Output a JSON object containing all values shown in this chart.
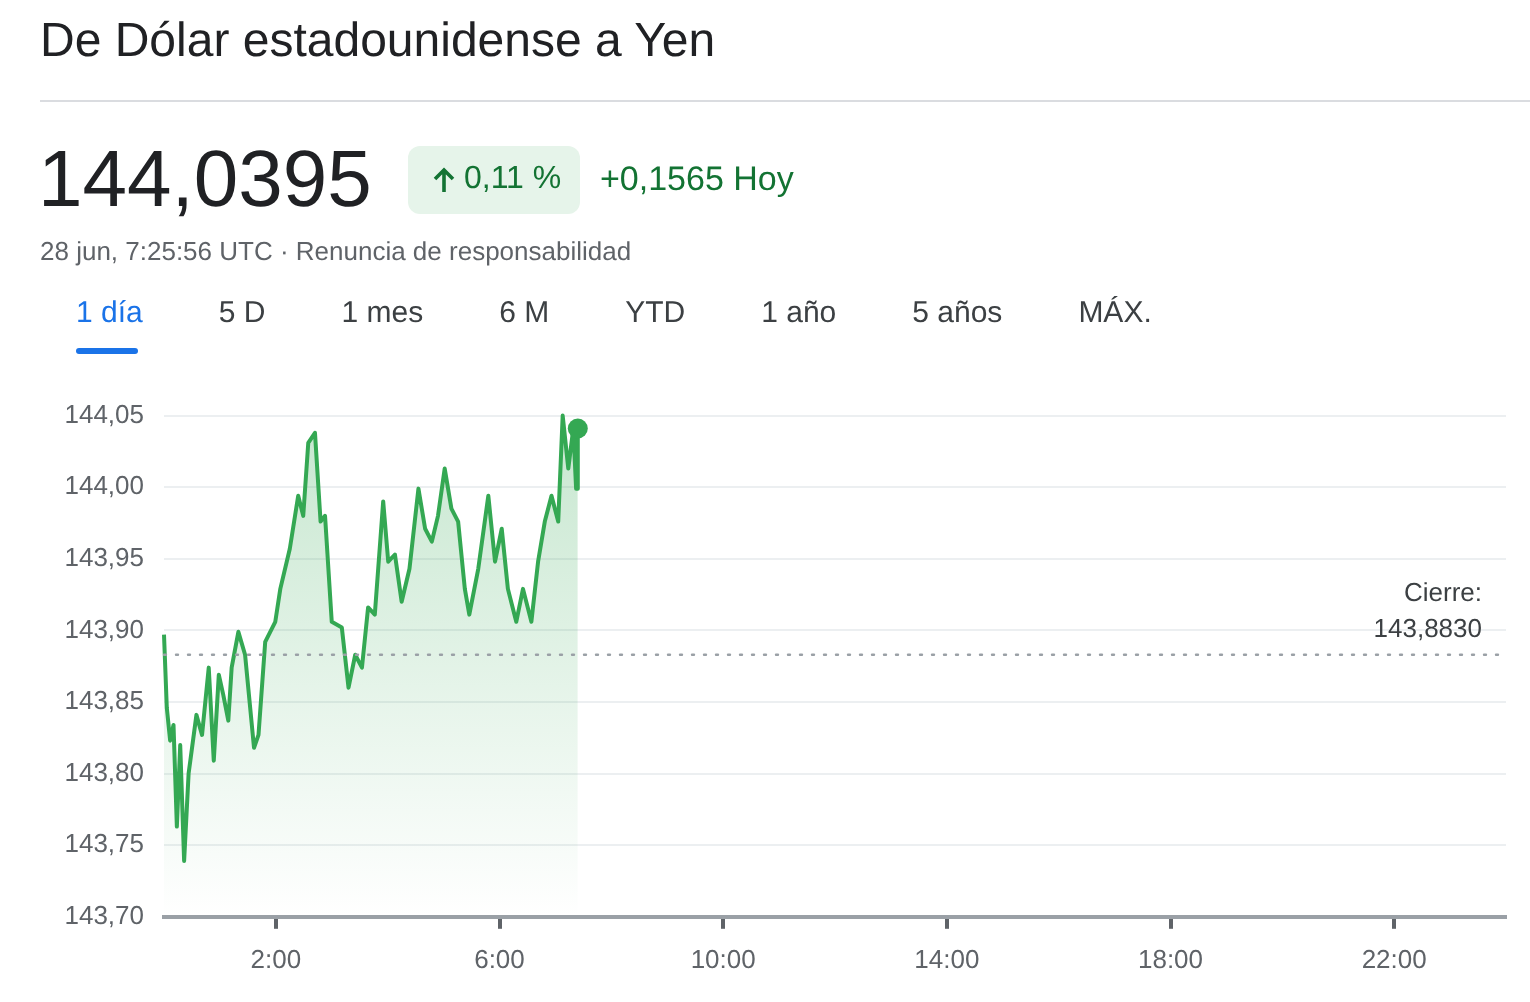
{
  "chart_data": {
    "type": "area",
    "title": "De Dólar estadounidense a Yen",
    "annotations": [
      "144,0395",
      "0,11 %",
      "+0,1565 Hoy",
      "28 jun, 7:25:56 UTC · Renuncia de responsabilidad",
      "1 día",
      "5 D",
      "1 mes",
      "6 M",
      "YTD",
      "1 año",
      "5 años",
      "MÁX."
    ],
    "x": [
      0,
      0.05,
      0.11,
      0.17,
      0.23,
      0.29,
      0.36,
      0.44,
      0.58,
      0.68,
      0.8,
      0.89,
      0.98,
      1.06,
      1.15,
      1.21,
      1.33,
      1.45,
      1.61,
      1.69,
      1.81,
      1.99,
      2.08,
      2.25,
      2.4,
      2.49,
      2.58,
      2.7,
      2.8,
      2.88,
      3.0,
      3.18,
      3.3,
      3.42,
      3.54,
      3.65,
      3.77,
      3.92,
      4.01,
      4.13,
      4.25,
      4.39,
      4.55,
      4.67,
      4.79,
      4.9,
      5.02,
      5.14,
      5.26,
      5.38,
      5.46,
      5.62,
      5.8,
      5.92,
      6.04,
      6.15,
      6.3,
      6.42,
      6.57,
      6.69,
      6.81,
      6.93,
      7.05,
      7.13,
      7.23,
      7.32,
      7.37,
      7.4
    ],
    "series": [
      {
        "color": "#34a853",
        "values": [
          143.897,
          143.846,
          143.823,
          143.834,
          143.763,
          143.82,
          143.739,
          143.8,
          143.841,
          143.827,
          143.874,
          143.809,
          143.869,
          143.855,
          143.837,
          143.874,
          143.899,
          143.883,
          143.818,
          143.827,
          143.892,
          143.906,
          143.929,
          143.957,
          143.994,
          143.98,
          144.031,
          144.038,
          143.976,
          143.98,
          143.906,
          143.902,
          143.86,
          143.883,
          143.874,
          143.916,
          143.911,
          143.99,
          143.948,
          143.953,
          143.92,
          143.943,
          143.999,
          143.971,
          143.962,
          143.98,
          144.013,
          143.985,
          143.976,
          143.929,
          143.911,
          143.943,
          143.994,
          143.948,
          143.971,
          143.929,
          143.906,
          143.929,
          143.906,
          143.948,
          143.976,
          143.994,
          143.976,
          144.05,
          144.013,
          144.041,
          143.999,
          144.041
        ]
      }
    ],
    "xlim": [
      0,
      24
    ],
    "xticks": [
      {
        "value": 2,
        "label": "2:00"
      },
      {
        "value": 6,
        "label": "6:00"
      },
      {
        "value": 10,
        "label": "10:00"
      },
      {
        "value": 14,
        "label": "14:00"
      },
      {
        "value": 18,
        "label": "18:00"
      },
      {
        "value": 22,
        "label": "22:00"
      }
    ],
    "ylim": [
      143.7,
      144.05
    ],
    "yticks": [
      {
        "value": 143.7,
        "label": "143,70"
      },
      {
        "value": 143.75,
        "label": "143,75"
      },
      {
        "value": 143.8,
        "label": "143,80"
      },
      {
        "value": 143.85,
        "label": "143,85"
      },
      {
        "value": 143.9,
        "label": "143,90"
      },
      {
        "value": 143.95,
        "label": "143,95"
      },
      {
        "value": 144.0,
        "label": "144,00"
      },
      {
        "value": 144.05,
        "label": "144,05"
      }
    ],
    "ref_lines": [
      {
        "axis": "y",
        "value": 143.883,
        "label": "Cierre:\n143,8830",
        "color": "#9aa0a6",
        "line_style": "dotted"
      }
    ],
    "grid": "y",
    "legend": false,
    "marker": "none",
    "line_style": "solid"
  }
}
